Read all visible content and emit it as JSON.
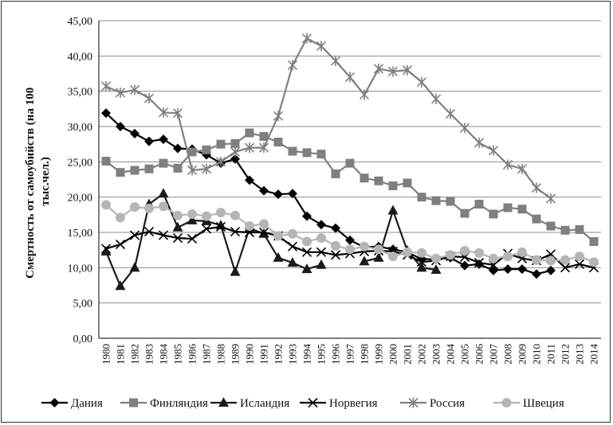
{
  "chart_data": {
    "type": "line",
    "title": "",
    "xlabel": "",
    "ylabel": "Смертность от самоубийств (на 100 тыс.чел.)",
    "ylabel_lines": [
      "Смертность от самоубийств (на 100",
      "тыс.чел.)"
    ],
    "ylim": [
      0,
      45
    ],
    "yticks": [
      "0,00",
      "5,00",
      "10,00",
      "15,00",
      "20,00",
      "25,00",
      "30,00",
      "35,00",
      "40,00",
      "45,00"
    ],
    "ytick_values": [
      0,
      5,
      10,
      15,
      20,
      25,
      30,
      35,
      40,
      45
    ],
    "grid": "horizontal",
    "legend_position": "bottom",
    "x": [
      "1980",
      "1981",
      "1982",
      "1983",
      "1984",
      "1985",
      "1986",
      "1987",
      "1988",
      "1989",
      "1990",
      "1991",
      "1992",
      "1993",
      "1994",
      "1995",
      "1996",
      "1997",
      "1998",
      "1999",
      "2000",
      "2001",
      "2002",
      "2003",
      "2004",
      "2005",
      "2006",
      "2007",
      "2008",
      "2009",
      "2010",
      "2011",
      "2012",
      "2013",
      "2014"
    ],
    "series": [
      {
        "name": "Дания",
        "color": "#000000",
        "marker": "diamond",
        "values": [
          31.9,
          30.0,
          29.0,
          27.9,
          28.2,
          26.9,
          26.8,
          26.0,
          24.8,
          25.4,
          22.4,
          20.9,
          20.4,
          20.5,
          17.3,
          16.1,
          15.6,
          13.9,
          12.9,
          13.0,
          12.6,
          12.2,
          11.2,
          11.2,
          11.4,
          10.3,
          10.5,
          9.6,
          9.8,
          9.8,
          9.1,
          9.6,
          null,
          null,
          null
        ]
      },
      {
        "name": "Финляндия",
        "color": "#7f7f7f",
        "marker": "square",
        "values": [
          25.1,
          23.5,
          23.8,
          24.0,
          24.8,
          24.1,
          26.4,
          26.7,
          27.5,
          27.6,
          29.1,
          28.6,
          27.8,
          26.5,
          26.3,
          26.1,
          23.3,
          24.8,
          22.7,
          22.3,
          21.6,
          22.0,
          20.0,
          19.5,
          19.4,
          17.7,
          19.0,
          17.6,
          18.5,
          18.3,
          16.9,
          15.9,
          15.3,
          15.4,
          13.7
        ]
      },
      {
        "name": "Исландия",
        "color": "#1a1a1a",
        "marker": "triangle",
        "values": [
          12.3,
          7.4,
          10.0,
          19.0,
          20.5,
          15.7,
          16.7,
          16.6,
          16.0,
          9.4,
          15.6,
          14.8,
          11.4,
          10.7,
          9.8,
          10.4,
          null,
          null,
          10.9,
          11.4,
          18.1,
          12.4,
          10.0,
          9.7,
          null,
          null,
          null,
          null,
          null,
          null,
          null,
          null,
          null,
          null,
          null
        ]
      },
      {
        "name": "Норвегия",
        "color": "#000000",
        "marker": "x",
        "values": [
          12.7,
          13.3,
          14.6,
          15.1,
          14.6,
          14.2,
          14.1,
          15.5,
          15.8,
          15.1,
          15.0,
          15.0,
          14.5,
          13.0,
          12.2,
          12.2,
          11.8,
          12.0,
          12.3,
          12.4,
          12.3,
          11.8,
          10.8,
          11.0,
          11.6,
          11.5,
          10.7,
          10.4,
          12.0,
          11.3,
          11.0,
          11.9,
          10.0,
          10.5,
          10.0
        ]
      },
      {
        "name": "Россия",
        "color": "#7f7f7f",
        "marker": "star",
        "values": [
          35.7,
          34.8,
          35.2,
          34.0,
          32.0,
          31.9,
          23.8,
          24.0,
          25.0,
          26.4,
          27.0,
          27.0,
          31.5,
          38.7,
          42.5,
          41.4,
          39.3,
          37.0,
          34.5,
          38.2,
          37.8,
          38.0,
          36.3,
          33.9,
          31.8,
          29.8,
          27.7,
          26.6,
          24.6,
          24.0,
          21.3,
          19.8,
          null,
          null,
          null
        ]
      },
      {
        "name": "Швеция",
        "color": "#b5b5b5",
        "marker": "circle",
        "values": [
          18.9,
          17.1,
          18.6,
          18.4,
          18.7,
          17.4,
          17.6,
          17.3,
          17.8,
          17.4,
          15.9,
          16.2,
          14.5,
          14.8,
          13.7,
          14.2,
          13.1,
          12.6,
          13.0,
          12.6,
          11.6,
          12.2,
          12.1,
          11.3,
          11.8,
          12.4,
          12.1,
          11.3,
          11.6,
          12.2,
          11.1,
          11.0,
          11.1,
          11.6,
          10.8
        ]
      }
    ]
  }
}
